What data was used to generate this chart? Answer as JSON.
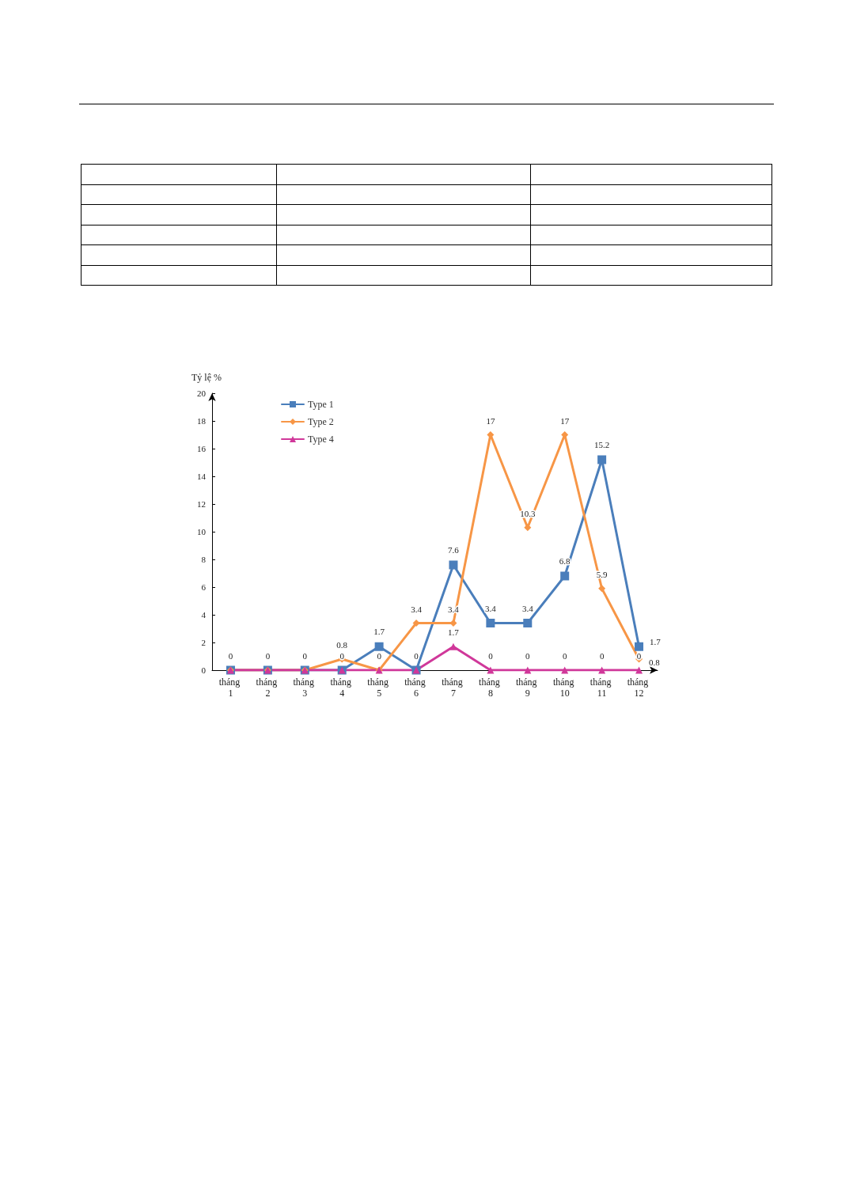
{
  "chart_data": {
    "type": "line",
    "ylabel": "Tỷ lệ %",
    "categories": [
      "tháng 1",
      "tháng 2",
      "tháng 3",
      "tháng 4",
      "tháng 5",
      "tháng 6",
      "tháng 7",
      "tháng 8",
      "tháng 9",
      "tháng 10",
      "tháng 11",
      "tháng 12"
    ],
    "series": [
      {
        "name": "Type 1",
        "color": "#4a7ebb",
        "marker": "square",
        "values": [
          0,
          0,
          0,
          0,
          1.7,
          0,
          7.6,
          3.4,
          3.4,
          6.8,
          15.2,
          1.7
        ],
        "value_labels": [
          null,
          null,
          null,
          null,
          "1.7",
          null,
          "7.6",
          "3.4",
          "3.4",
          "6.8",
          "15.2",
          "1.7"
        ]
      },
      {
        "name": "Type 2",
        "color": "#f79646",
        "marker": "diamond",
        "values": [
          0,
          0,
          0,
          0.8,
          0,
          3.4,
          3.4,
          17,
          10.3,
          17,
          5.9,
          0.8
        ],
        "value_labels": [
          null,
          null,
          null,
          "0.8",
          null,
          "3.4",
          "3.4",
          "17",
          "10.3",
          "17",
          "5.9",
          "0.8"
        ]
      },
      {
        "name": "Type 4",
        "color": "#d0389a",
        "marker": "triangle",
        "values": [
          0,
          0,
          0,
          0,
          0,
          0,
          1.7,
          0,
          0,
          0,
          0,
          0
        ],
        "value_labels": [
          "0",
          "0",
          "0",
          "0",
          "0",
          "0",
          "1.7",
          "0",
          "0",
          "0",
          "0",
          "0"
        ]
      }
    ],
    "ylim": [
      0,
      20
    ],
    "yticks": [
      0,
      2,
      4,
      6,
      8,
      10,
      12,
      14,
      16,
      18,
      20
    ],
    "grid": false,
    "legend": "top left"
  }
}
